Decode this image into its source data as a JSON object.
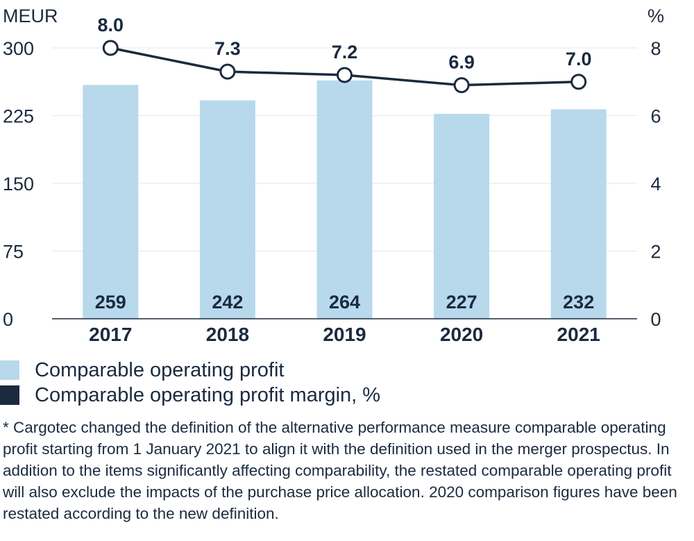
{
  "chart_data": {
    "type": "bar",
    "categories": [
      "2017",
      "2018",
      "2019",
      "2020",
      "2021"
    ],
    "series": [
      {
        "name": "Comparable operating profit",
        "type": "bar",
        "axis": "left",
        "values": [
          259,
          242,
          264,
          227,
          232
        ],
        "color": "#b8d9ec"
      },
      {
        "name": "Comparable operating profit margin, %",
        "type": "line",
        "axis": "right",
        "values": [
          8.0,
          7.3,
          7.2,
          6.9,
          7.0
        ],
        "color": "#1b2a3f"
      }
    ],
    "bar_labels": [
      "259",
      "242",
      "264",
      "227",
      "232"
    ],
    "line_labels": [
      "8.0",
      "7.3",
      "7.2",
      "6.9",
      "7.0"
    ],
    "y_left": {
      "unit": "MEUR",
      "ylim": [
        0,
        300
      ],
      "ticks": [
        0,
        75,
        150,
        225,
        300
      ]
    },
    "y_right": {
      "unit": "%",
      "ylim": [
        0,
        8
      ],
      "ticks": [
        0,
        2,
        4,
        6,
        8
      ]
    },
    "grid": true,
    "legend_placement": "bottom-left"
  },
  "legend": {
    "bar_label": "Comparable operating profit",
    "line_label": "Comparable operating profit margin, %"
  },
  "footnote": "* Cargotec changed the definition of the alternative performance measure comparable operating profit starting from 1 January 2021 to align it with the definition used in the merger prospectus. In addition to the items significantly affecting comparability, the restated comparable operating profit will also exclude the impacts of the purchase price allocation. 2020 comparison figures have been restated according to the new definition."
}
